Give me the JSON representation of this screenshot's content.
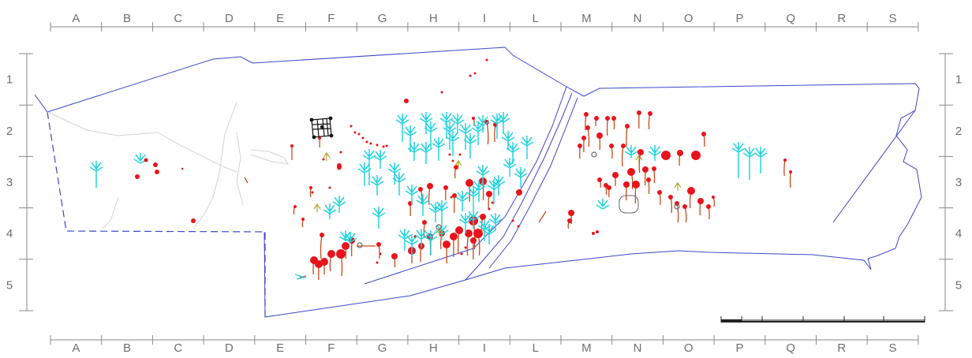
{
  "columns": [
    "A",
    "B",
    "C",
    "D",
    "E",
    "F",
    "G",
    "H",
    "I",
    "L",
    "M",
    "N",
    "O",
    "P",
    "Q",
    "R",
    "S"
  ],
  "rows": [
    "1",
    "2",
    "3",
    "4",
    "5"
  ],
  "colors": {
    "outline": "#3f46c8",
    "red_figures": "#e8141c",
    "brown_figures": "#c84a1c",
    "cyan_figures": "#22d4e0",
    "olive_figures": "#b0a832",
    "grid_ruler": "#8a8a8a",
    "faint_lines": "#d3d3d3",
    "black_drawing": "#111111"
  }
}
